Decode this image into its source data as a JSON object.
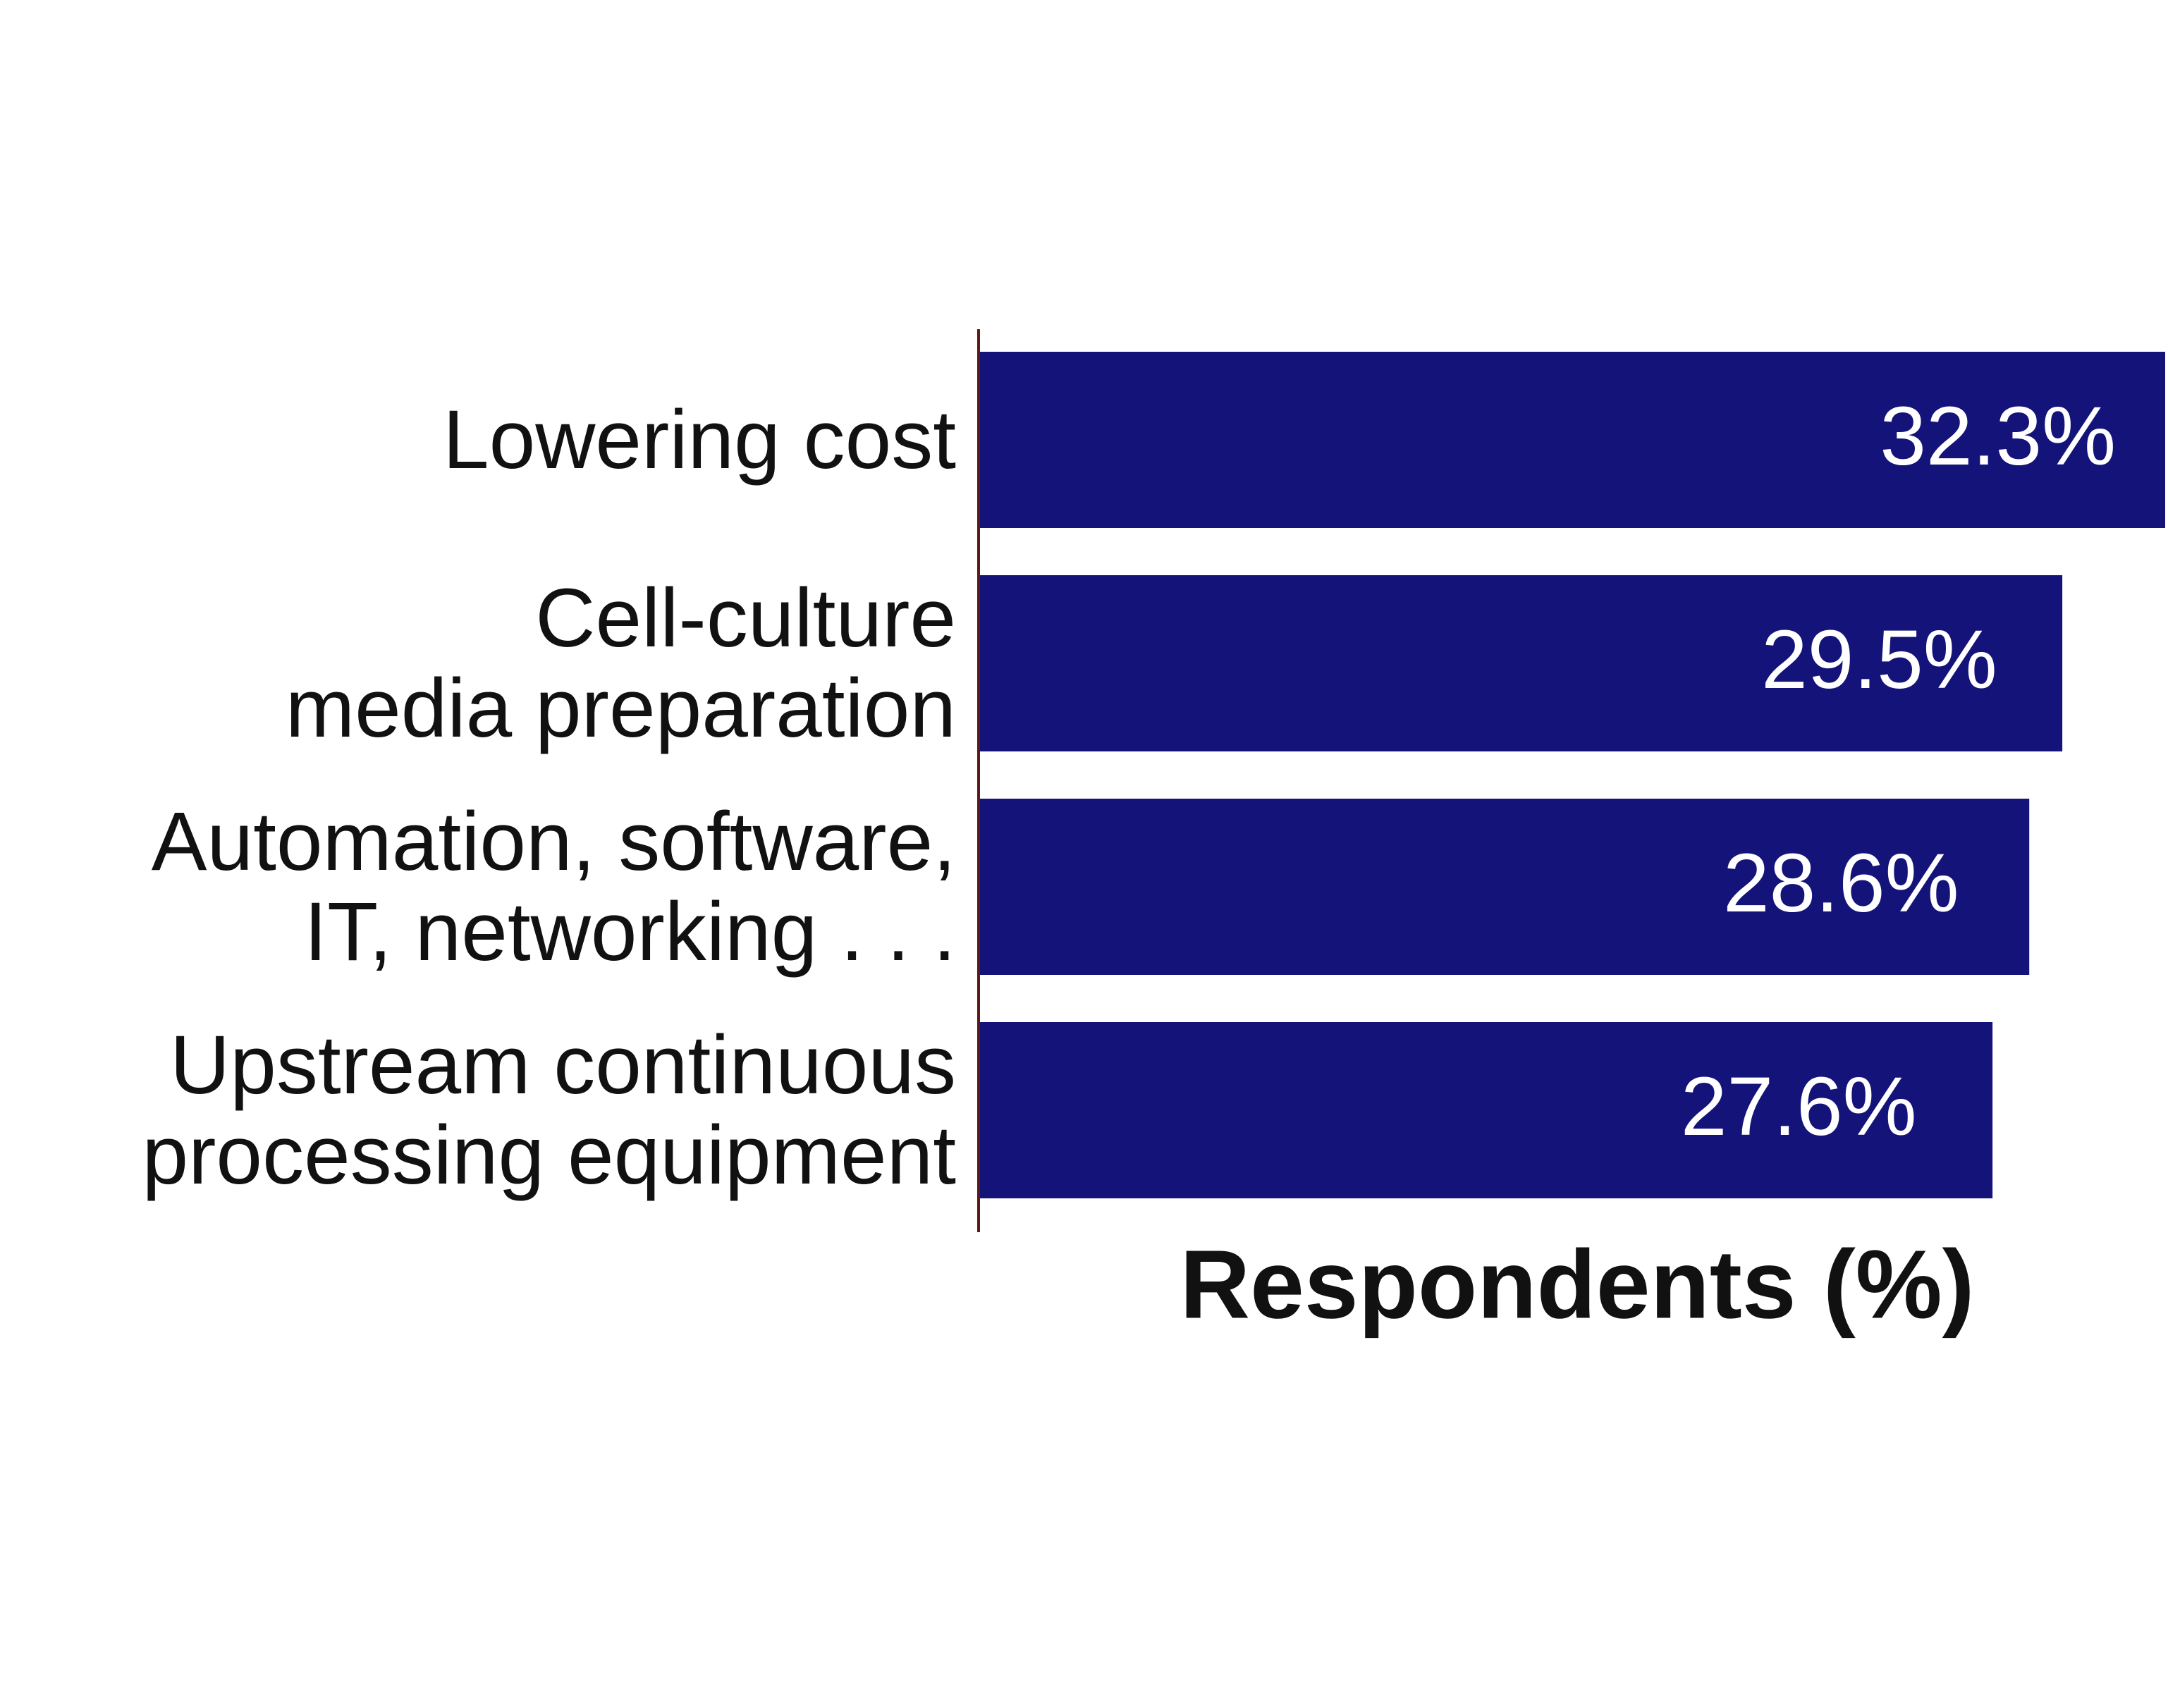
{
  "chart_data": {
    "type": "bar",
    "orientation": "horizontal",
    "x_label": "Respondents (%)",
    "categories": [
      "Lowering cost",
      "Cell-culture \nmedia preparation",
      "Automation, software,\nIT, networking . . . ",
      "Upstream continuous\nprocessing equipment"
    ],
    "values": [
      32.3,
      29.5,
      28.6,
      27.6
    ],
    "value_labels": [
      "32.3%",
      "29.5%",
      "28.6%",
      "27.6%"
    ],
    "color": "#13137a"
  }
}
